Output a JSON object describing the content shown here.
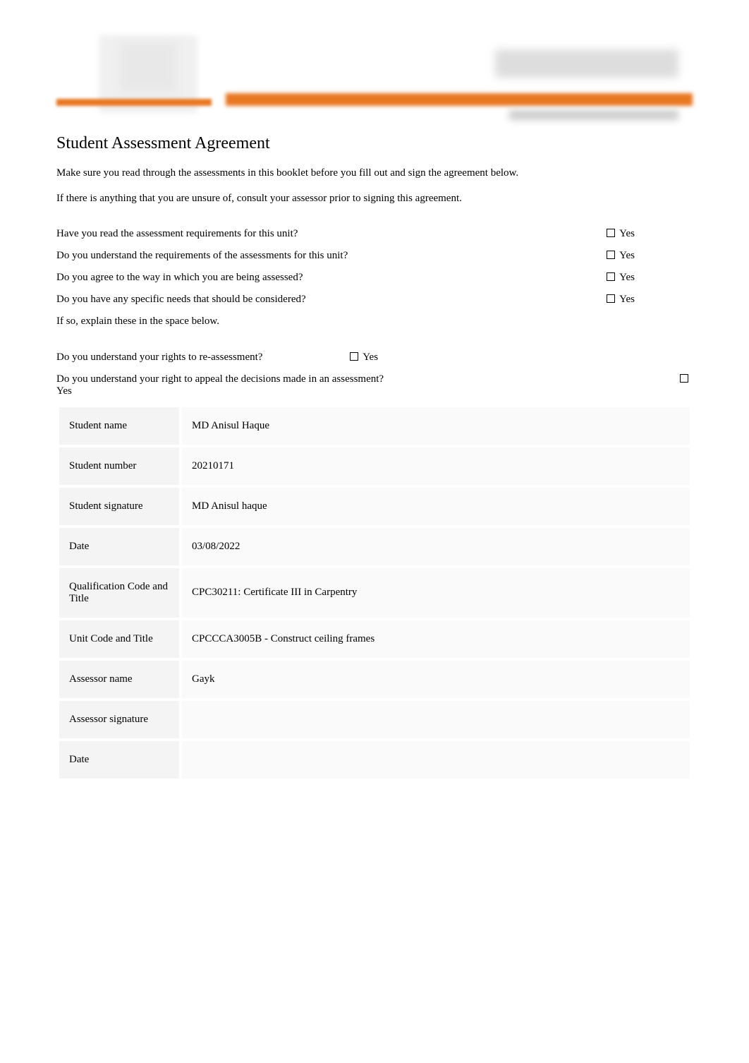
{
  "title": "Student Assessment Agreement",
  "intro": {
    "p1": "Make sure you read through the assessments in this booklet before you fill out and sign the agreement below.",
    "p2": "If there is anything that you are unsure of, consult your assessor prior to signing this agreement."
  },
  "questions": {
    "q1": {
      "text": "Have you read the assessment requirements for this unit?",
      "answer": "Yes"
    },
    "q2": {
      "text": "Do you understand the requirements of the assessments for this unit?",
      "answer": "Yes"
    },
    "q3": {
      "text": "Do you agree to the way in which you are being assessed?",
      "answer": "Yes"
    },
    "q4": {
      "text": "Do you have any specific needs that should be considered?",
      "answer": "Yes"
    },
    "explain": "If so, explain these in the space below.",
    "q5": {
      "text": "Do you understand your rights to re-assessment?",
      "answer": "Yes"
    },
    "q6": {
      "text": "Do you understand your right to appeal the decisions made in an assessment?",
      "answer_below": "Yes"
    }
  },
  "form": {
    "rows": [
      {
        "label": "Student name",
        "value": "MD Anisul Haque"
      },
      {
        "label": "Student number",
        "value": "20210171"
      },
      {
        "label": "Student signature",
        "value": "MD Anisul haque"
      },
      {
        "label": "Date",
        "value": "03/08/2022"
      },
      {
        "label": "Qualification Code and Title",
        "value": "CPC30211: Certificate III in Carpentry"
      },
      {
        "label": "Unit Code and Title",
        "value": "CPCCCA3005B - Construct ceiling frames"
      },
      {
        "label": "Assessor name",
        "value": "Gayk"
      },
      {
        "label": "Assessor signature",
        "value": ""
      },
      {
        "label": "Date",
        "value": ""
      }
    ]
  },
  "colors": {
    "accent": "#e87722",
    "table_label_bg": "#f4f4f4",
    "table_value_bg": "#fafafa",
    "text": "#000000",
    "background": "#ffffff"
  },
  "typography": {
    "title_fontsize": 24,
    "body_fontsize": 15,
    "font_family": "Georgia, Times New Roman, serif"
  }
}
